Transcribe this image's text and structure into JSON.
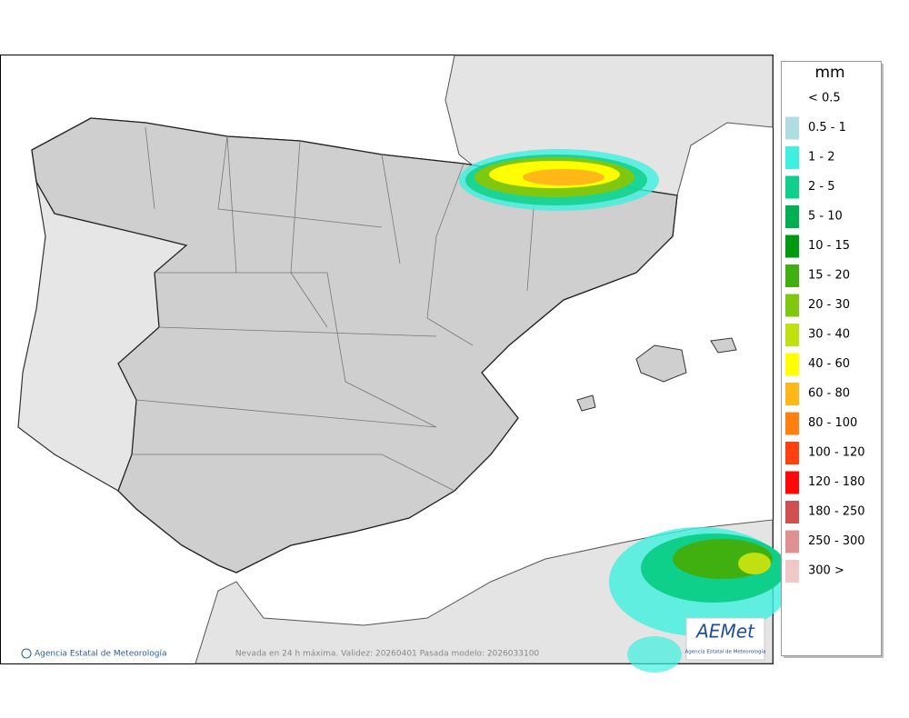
{
  "legend": {
    "title": "mm",
    "items": [
      {
        "label": "< 0.5",
        "color": null
      },
      {
        "label": "0.5 - 1",
        "color": "#b0dde3"
      },
      {
        "label": "1 - 2",
        "color": "#3ff0e0"
      },
      {
        "label": "2 - 5",
        "color": "#0fd08a"
      },
      {
        "label": "5 - 10",
        "color": "#00b050"
      },
      {
        "label": "10 - 15",
        "color": "#009a10"
      },
      {
        "label": "15 - 20",
        "color": "#40b010"
      },
      {
        "label": "20 - 30",
        "color": "#80c810"
      },
      {
        "label": "30 - 40",
        "color": "#c0e010"
      },
      {
        "label": "40 - 60",
        "color": "#ffff00"
      },
      {
        "label": "60 - 80",
        "color": "#ffb818"
      },
      {
        "label": "80 - 100",
        "color": "#ff8010"
      },
      {
        "label": "100 - 120",
        "color": "#ff4010"
      },
      {
        "label": "120 - 180",
        "color": "#ff0808"
      },
      {
        "label": "180 - 250",
        "color": "#d05050"
      },
      {
        "label": "250 - 300",
        "color": "#e09090"
      },
      {
        "label": "300 >",
        "color": "#f0c8c8"
      }
    ]
  },
  "footer": {
    "credit": "Agencia Estatal de Meteorología",
    "caption": "Nevada en 24 h máxima. Validez: 20260401 Pasada modelo: 2026033100"
  },
  "logo": {
    "name": "AEMet",
    "subtitle": "Agencia Estatal de Meteorología"
  }
}
